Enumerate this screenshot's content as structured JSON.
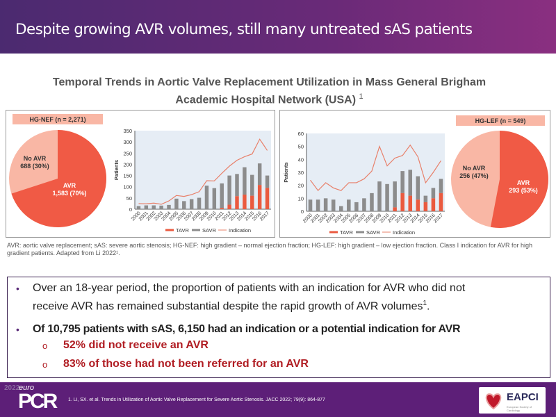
{
  "header": {
    "title": "Despite growing AVR volumes, still many untreated sAS patients"
  },
  "subtitle": {
    "line1": "Temporal Trends in Aortic Valve Replacement Utilization in Mass General Brigham",
    "line2": "Academic Hospital Network (USA)",
    "sup": "1"
  },
  "colors": {
    "tavr": "#ea5a3f",
    "savr": "#8c8c8c",
    "indication": "#e8806a",
    "avr_slice": "#f05a45",
    "no_avr_slice": "#f9b7a5",
    "plot_bg": "#e6edf5",
    "purple": "#5d1f78"
  },
  "chart_data": [
    {
      "type": "pie",
      "title": "HG-NEF (n = 2,271)",
      "slices": [
        {
          "label": "AVR",
          "text": "1,583 (70%)",
          "value": 1583,
          "percent": 70
        },
        {
          "label": "No AVR",
          "text": "688 (30%)",
          "value": 688,
          "percent": 30
        }
      ]
    },
    {
      "type": "bar",
      "stacked": true,
      "ylabel": "Patients",
      "ylim": [
        0,
        350
      ],
      "yticks": [
        "0",
        "50",
        "100",
        "150",
        "200",
        "250",
        "300",
        "350"
      ],
      "categories": [
        "2000",
        "2001",
        "2002",
        "2003",
        "2004",
        "2005",
        "2006",
        "2007",
        "2008",
        "2009",
        "2010",
        "2011",
        "2012",
        "2013",
        "2014",
        "2015",
        "2016",
        "2017"
      ],
      "series": [
        {
          "name": "TAVR",
          "values": [
            0,
            0,
            0,
            0,
            0,
            0,
            0,
            0,
            0,
            0,
            0,
            5,
            20,
            58,
            65,
            60,
            108,
            95
          ]
        },
        {
          "name": "SAVR",
          "values": [
            14,
            17,
            17,
            16,
            19,
            47,
            36,
            45,
            51,
            105,
            94,
            110,
            130,
            99,
            122,
            93,
            96,
            55
          ]
        },
        {
          "name": "Indication",
          "type": "line",
          "values": [
            25,
            24,
            27,
            22,
            37,
            61,
            57,
            65,
            78,
            127,
            126,
            160,
            192,
            218,
            234,
            246,
            312,
            262
          ]
        }
      ],
      "legend": "bottom",
      "grid": false
    },
    {
      "type": "bar",
      "stacked": true,
      "ylabel": "Patients",
      "ylim": [
        0,
        60
      ],
      "yticks": [
        "0",
        "10",
        "20",
        "30",
        "40",
        "50",
        "60"
      ],
      "categories": [
        "2000",
        "2001",
        "2002",
        "2003",
        "2004",
        "2005",
        "2006",
        "2007",
        "2008",
        "2009",
        "2010",
        "2011",
        "2012",
        "2013",
        "2014",
        "2015",
        "2016",
        "2017"
      ],
      "series": [
        {
          "name": "TAVR",
          "values": [
            0,
            0,
            0,
            0,
            0,
            0,
            0,
            0,
            0,
            0,
            0,
            3,
            14,
            12,
            9,
            7,
            10,
            14
          ]
        },
        {
          "name": "SAVR",
          "values": [
            9,
            9,
            10,
            9,
            4,
            9,
            7,
            10,
            14,
            23,
            21,
            20,
            17,
            20,
            18,
            5,
            8,
            11
          ]
        },
        {
          "name": "Indication",
          "type": "line",
          "values": [
            24,
            16,
            22,
            18,
            16,
            22,
            22,
            25,
            31,
            50,
            35,
            41,
            43,
            51,
            42,
            22,
            30,
            39
          ]
        }
      ],
      "legend": "bottom",
      "grid": false
    },
    {
      "type": "pie",
      "title": "HG-LEF (n = 549)",
      "slices": [
        {
          "label": "AVR",
          "text": "293 (53%)",
          "value": 293,
          "percent": 53
        },
        {
          "label": "No AVR",
          "text": "256 (47%)",
          "value": 256,
          "percent": 47
        }
      ]
    }
  ],
  "abbreviations": "AVR: aortic valve replacement; sAS: severe aortic stenosis; HG-NEF: high gradient – normal ejection fraction; HG-LEF: high gradient – low ejection fraction. Class I indication for AVR for high gradient patients. Adapted from Li 2022¹.",
  "bullets": {
    "b1_line1": "Over an 18-year period, the proportion of patients with an indication for AVR who did not",
    "b1_line2": "receive AVR has remained substantial despite the rapid growth of AVR volumes",
    "b1_sup": "1",
    "b2": "Of 10,795 patients with sAS, 6,150 had an indication or a potential indication for AVR",
    "s1": "52% did not receive an AVR",
    "s2": "83% of those had not been referred for an AVR"
  },
  "footer": {
    "year": "2022",
    "euro": "euro",
    "pcr": "PCR",
    "reference": "1.    Li, SX. et al. Trends in Utilization of Aortic Valve Replacement for Severe Aortic Stenosis. JACC 2022; 79(9): 864-877",
    "logo_text": "EAPCI",
    "logo_sub": "European Society of Cardiology"
  }
}
